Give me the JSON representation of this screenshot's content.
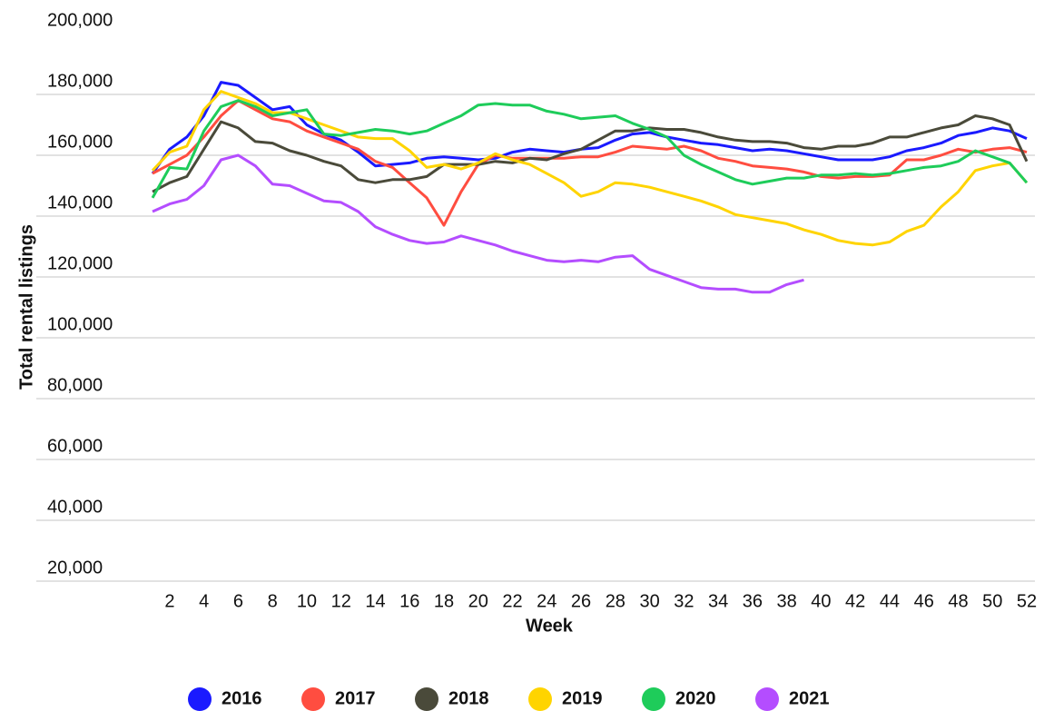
{
  "chart_data": {
    "type": "line",
    "y_label": "Total rental listings",
    "x_label": "Week",
    "x": [
      1,
      2,
      3,
      4,
      5,
      6,
      7,
      8,
      9,
      10,
      11,
      12,
      13,
      14,
      15,
      16,
      17,
      18,
      19,
      20,
      21,
      22,
      23,
      24,
      25,
      26,
      27,
      28,
      29,
      30,
      31,
      32,
      33,
      34,
      35,
      36,
      37,
      38,
      39,
      40,
      41,
      42,
      43,
      44,
      45,
      46,
      47,
      48,
      49,
      50,
      51,
      52
    ],
    "xlim": [
      1,
      52
    ],
    "xticks": [
      2,
      4,
      6,
      8,
      10,
      12,
      14,
      16,
      18,
      20,
      22,
      24,
      26,
      28,
      30,
      32,
      34,
      36,
      38,
      40,
      42,
      44,
      46,
      48,
      50,
      52
    ],
    "ylim": [
      20000,
      200000
    ],
    "yticks": [
      {
        "value": 20000,
        "label": "20,000"
      },
      {
        "value": 40000,
        "label": "40,000"
      },
      {
        "value": 60000,
        "label": "60,000"
      },
      {
        "value": 80000,
        "label": "80,000"
      },
      {
        "value": 100000,
        "label": "100,000"
      },
      {
        "value": 120000,
        "label": "120,000"
      },
      {
        "value": 140000,
        "label": "140,000"
      },
      {
        "value": 160000,
        "label": "160,000"
      },
      {
        "value": 180000,
        "label": "180,000"
      },
      {
        "value": 200000,
        "label": "200,000"
      }
    ],
    "grid": true,
    "series": [
      {
        "name": "2016",
        "color": "#1a1aff",
        "values": [
          154000,
          162000,
          166000,
          173000,
          184000,
          183000,
          179000,
          175000,
          176000,
          170000,
          167000,
          165000,
          161000,
          156500,
          157000,
          157500,
          159000,
          159500,
          159000,
          158500,
          159000,
          161000,
          162000,
          161500,
          161000,
          162000,
          162500,
          165000,
          167000,
          167500,
          166000,
          165000,
          164000,
          163500,
          162500,
          161500,
          162000,
          161500,
          160500,
          159500,
          158500,
          158500,
          158500,
          159500,
          161500,
          162500,
          164000,
          166500,
          167500,
          169000,
          168000,
          165500
        ]
      },
      {
        "name": "2017",
        "color": "#ff4d40",
        "values": [
          154000,
          157000,
          160000,
          166000,
          173000,
          178000,
          175000,
          172000,
          171000,
          168000,
          166000,
          164000,
          162000,
          158000,
          156000,
          151000,
          146000,
          137000,
          148000,
          157000,
          160000,
          159000,
          159000,
          159000,
          159000,
          159500,
          159500,
          161000,
          163000,
          162500,
          162000,
          163000,
          161500,
          159000,
          158000,
          156500,
          156000,
          155500,
          154500,
          153000,
          152500,
          153000,
          153000,
          153500,
          158500,
          158500,
          160000,
          162000,
          161000,
          162000,
          162500,
          161000
        ]
      },
      {
        "name": "2018",
        "color": "#4a4a3a",
        "values": [
          148000,
          151000,
          153000,
          162000,
          171000,
          169000,
          164500,
          164000,
          161500,
          160000,
          158000,
          156500,
          152000,
          151000,
          152000,
          152000,
          153000,
          157000,
          157000,
          157000,
          158000,
          157500,
          159000,
          158500,
          160500,
          162000,
          165000,
          168000,
          168000,
          169000,
          168500,
          168500,
          167500,
          166000,
          165000,
          164500,
          164500,
          164000,
          162500,
          162000,
          163000,
          163000,
          164000,
          166000,
          166000,
          167500,
          169000,
          170000,
          173000,
          172000,
          170000,
          158000
        ]
      },
      {
        "name": "2019",
        "color": "#ffd400",
        "values": [
          155000,
          161000,
          163000,
          175000,
          181000,
          179000,
          177000,
          174000,
          174000,
          172000,
          170000,
          168000,
          166000,
          165500,
          165500,
          161500,
          156000,
          157000,
          155500,
          157500,
          160500,
          158500,
          157000,
          154000,
          151000,
          146500,
          148000,
          151000,
          150500,
          149500,
          148000,
          146500,
          145000,
          143000,
          140500,
          139500,
          138500,
          137500,
          135500,
          134000,
          132000,
          131000,
          130500,
          131500,
          135000,
          137000,
          143000,
          148000,
          155000,
          156500,
          157500,
          151000
        ]
      },
      {
        "name": "2020",
        "color": "#1ecc5a",
        "values": [
          146000,
          156000,
          155500,
          168000,
          176000,
          178000,
          176000,
          173000,
          174000,
          175000,
          167000,
          166500,
          167500,
          168500,
          168000,
          167000,
          168000,
          170500,
          173000,
          176500,
          177000,
          176500,
          176500,
          174500,
          173500,
          172000,
          172500,
          173000,
          170500,
          168500,
          166000,
          160000,
          157000,
          154500,
          152000,
          150500,
          151500,
          152500,
          152500,
          153500,
          153500,
          154000,
          153500,
          154000,
          155000,
          156000,
          156500,
          158000,
          161500,
          159500,
          157500,
          151000
        ]
      },
      {
        "name": "2021",
        "color": "#b44dff",
        "values": [
          141500,
          144000,
          145500,
          150000,
          158500,
          160000,
          156500,
          150500,
          150000,
          147500,
          145000,
          144500,
          141500,
          136500,
          134000,
          132000,
          131000,
          131500,
          133500,
          132000,
          130500,
          128500,
          127000,
          125500,
          125000,
          125500,
          125000,
          126500,
          127000,
          122500,
          120500,
          118500,
          116500,
          116000,
          116000,
          115000,
          115000,
          117500,
          119000,
          null,
          null,
          null,
          null,
          null,
          null,
          null,
          null,
          null,
          null,
          null,
          null,
          null
        ]
      }
    ]
  }
}
